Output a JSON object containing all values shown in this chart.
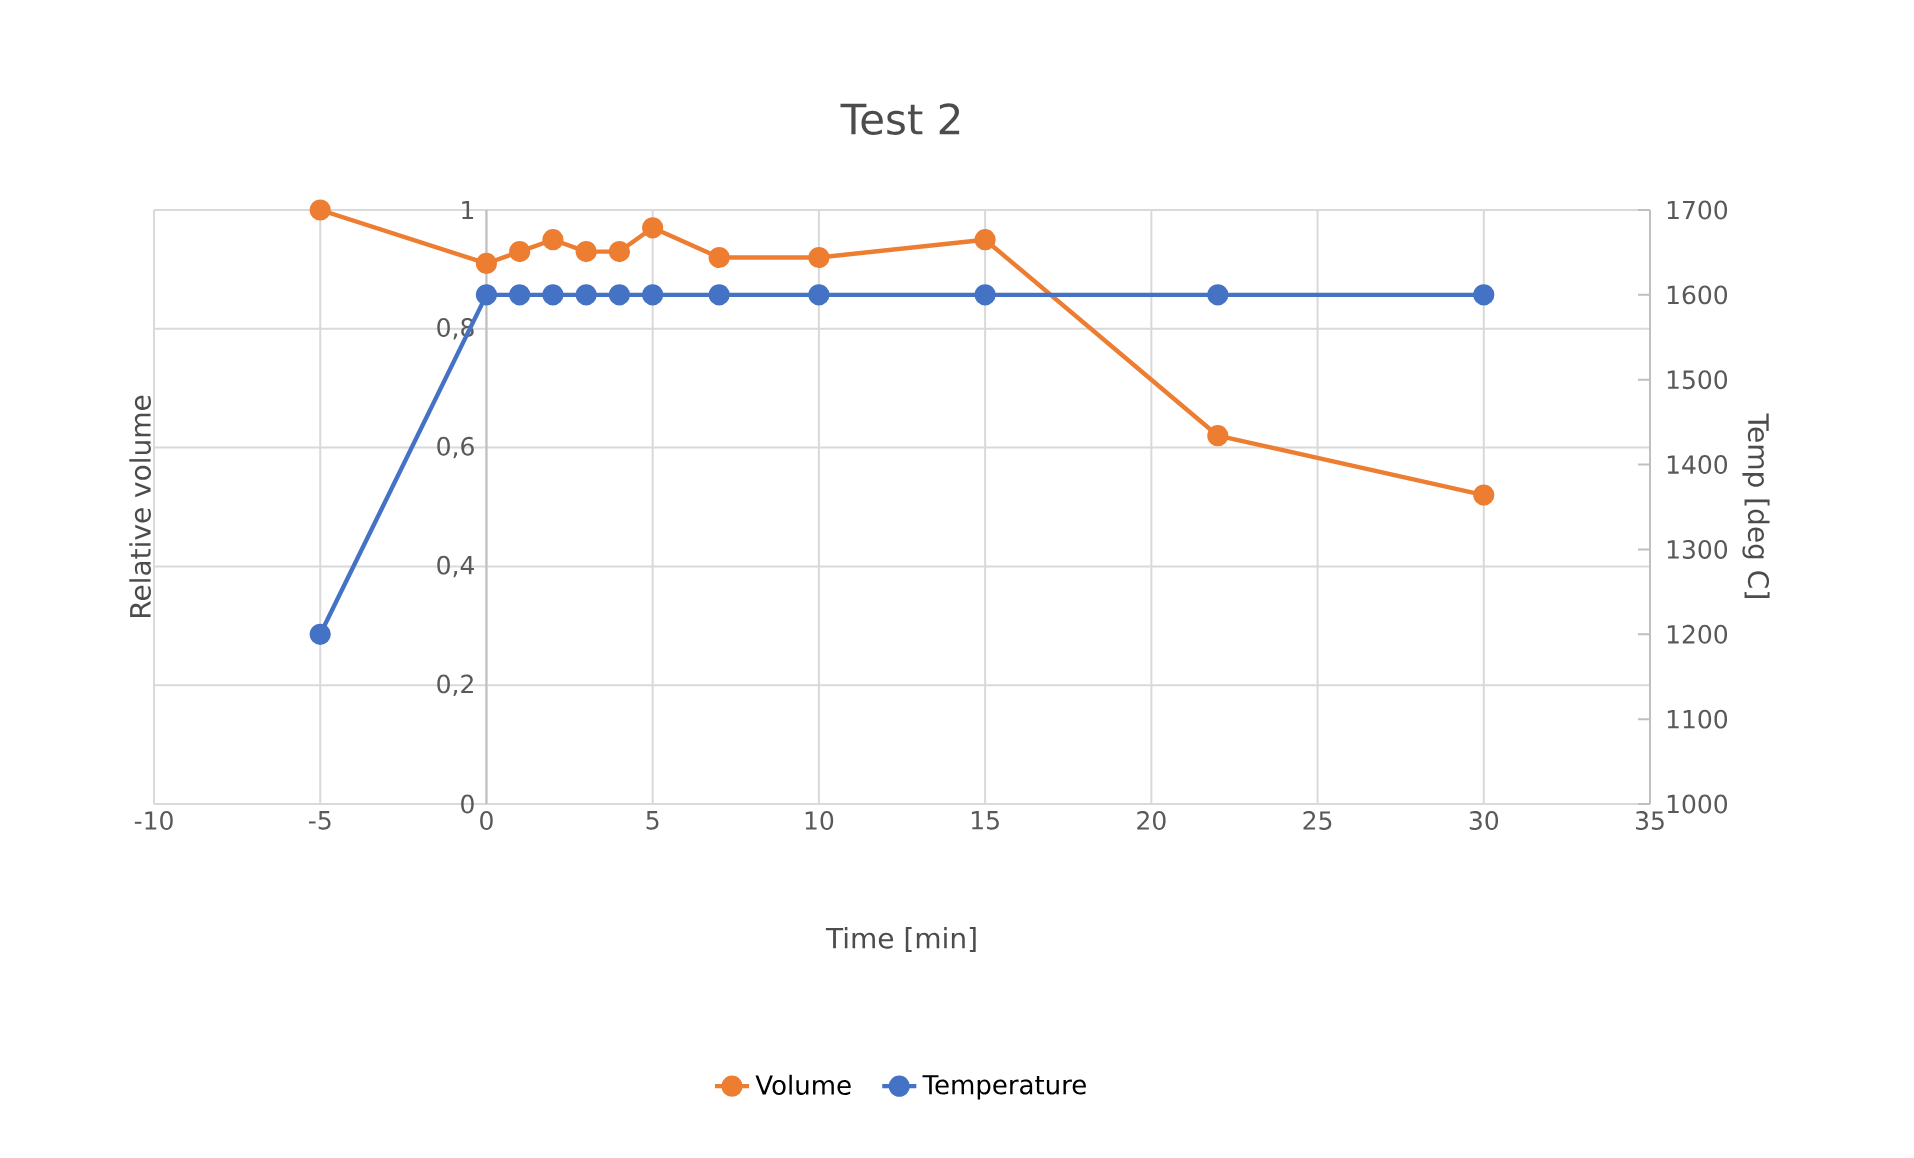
{
  "chart_data": {
    "type": "line",
    "title": "Test 2",
    "xlabel": "Time [min]",
    "ylabel": "Relative volume",
    "y2label": "Temp  [deg C]",
    "xlim": [
      -10,
      35
    ],
    "xticks": [
      -10,
      -5,
      0,
      5,
      10,
      15,
      20,
      25,
      30,
      35
    ],
    "ylim": [
      0,
      1
    ],
    "yticks": [
      0,
      {
        "value": 0.2,
        "label": "0,2"
      },
      {
        "value": 0.4,
        "label": "0,4"
      },
      {
        "value": 0.6,
        "label": "0,6"
      },
      {
        "value": 0.8,
        "label": "0,8"
      },
      1
    ],
    "y2lim": [
      1000,
      1700
    ],
    "y2ticks": [
      1000,
      1100,
      1200,
      1300,
      1400,
      1500,
      1600,
      1700
    ],
    "grid": true,
    "legend": "bottom",
    "marker": "circle",
    "line_style": "solid",
    "series": [
      {
        "name": "Volume",
        "color": "#ed7d31",
        "x": [
          -5,
          0,
          1,
          2,
          3,
          4,
          5,
          7,
          10,
          15,
          22,
          30
        ],
        "values": [
          1.0,
          0.91,
          0.93,
          0.95,
          0.93,
          0.93,
          0.97,
          0.92,
          0.92,
          0.95,
          0.62,
          0.52
        ]
      },
      {
        "name": "Temperature",
        "color": "#4472c4",
        "axis": "y2",
        "x": [
          -5,
          0,
          1,
          2,
          3,
          4,
          5,
          7,
          10,
          15,
          22,
          30
        ],
        "values": [
          1200,
          1600,
          1600,
          1600,
          1600,
          1600,
          1600,
          1600,
          1600,
          1600,
          1600,
          1600
        ]
      }
    ]
  }
}
